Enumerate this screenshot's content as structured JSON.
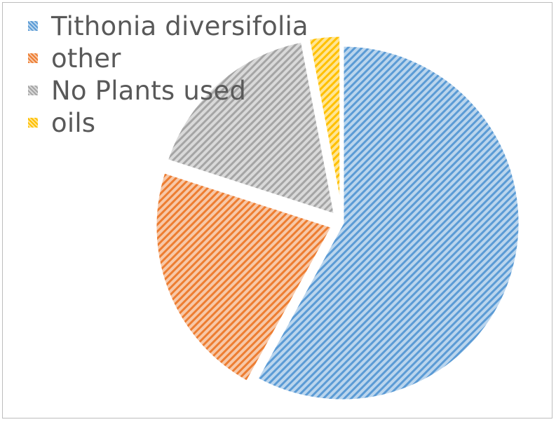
{
  "chart_data": {
    "type": "pie",
    "title": "",
    "categories": [
      "Tithonia diversifolia",
      "other",
      "No Plants used",
      "oils"
    ],
    "values": [
      58,
      22,
      17,
      3
    ],
    "colors": [
      "#5b9bd5",
      "#ed7d31",
      "#a5a5a5",
      "#ffc000"
    ],
    "fill_pattern": "diagonal-stripes",
    "legend": {
      "position": "top-left",
      "entries": [
        {
          "label": "Tithonia diversifolia",
          "color": "#5b9bd5"
        },
        {
          "label": "other",
          "color": "#ed7d31"
        },
        {
          "label": "No Plants used",
          "color": "#a5a5a5"
        },
        {
          "label": "oils",
          "color": "#ffc000"
        }
      ]
    },
    "start_angle_deg": 0,
    "direction": "clockwise",
    "exploded": true
  }
}
